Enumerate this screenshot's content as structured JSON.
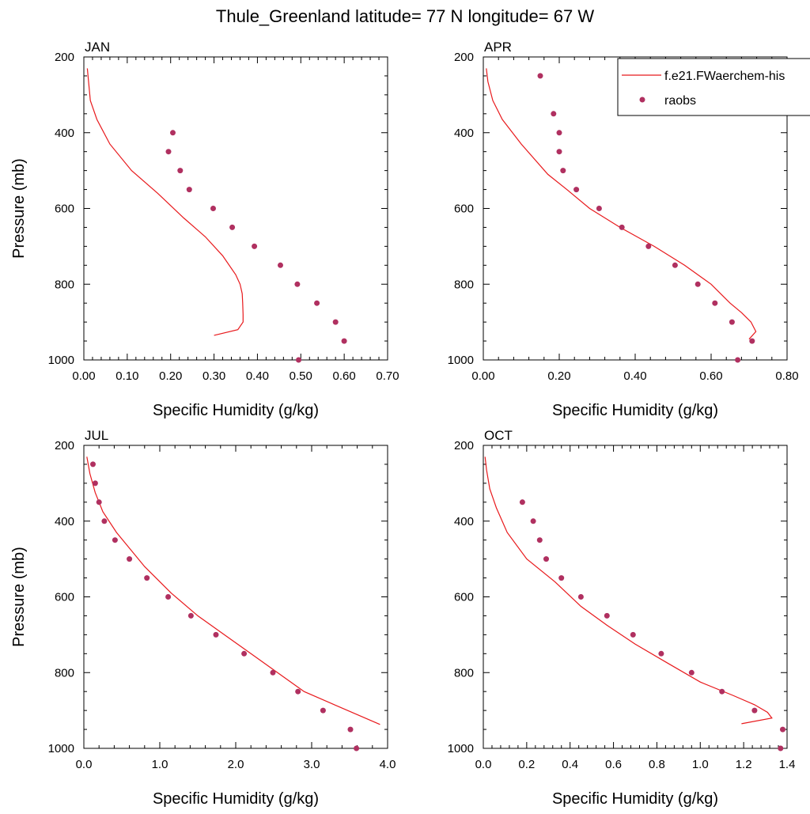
{
  "page": {
    "title": "Thule_Greenland  latitude= 77 N longitude= 67 W"
  },
  "legend": {
    "model_label": "f.e21.FWaerchem-his",
    "obs_label": "raobs",
    "model_color": "#e8191c",
    "obs_color": "#b03060"
  },
  "chart_data": [
    {
      "type": "line",
      "title": "JAN",
      "xlabel": "Specific Humidity (g/kg)",
      "ylabel": "Pressure (mb)",
      "xlim": [
        0,
        0.7
      ],
      "ylim": [
        1000,
        200
      ],
      "y_inverted": true,
      "xticks": [
        "0.00",
        "0.10",
        "0.20",
        "0.30",
        "0.40",
        "0.50",
        "0.60",
        "0.70"
      ],
      "yticks": [
        "200",
        "400",
        "600",
        "800",
        "1000"
      ],
      "series": [
        {
          "name": "f.e21.FWaerchem-his",
          "kind": "line",
          "x": [
            0.3,
            0.355,
            0.367,
            0.367,
            0.366,
            0.365,
            0.36,
            0.35,
            0.32,
            0.28,
            0.23,
            0.17,
            0.11,
            0.06,
            0.03,
            0.015,
            0.008
          ],
          "y": [
            935,
            920,
            900,
            880,
            850,
            825,
            800,
            775,
            725,
            675,
            625,
            560,
            500,
            430,
            365,
            315,
            230
          ]
        },
        {
          "name": "raobs",
          "kind": "markers",
          "x": [
            0.495,
            0.6,
            0.58,
            0.537,
            0.492,
            0.453,
            0.393,
            0.342,
            0.298,
            0.243,
            0.222,
            0.195,
            0.205
          ],
          "y": [
            1000,
            950,
            900,
            850,
            800,
            750,
            700,
            650,
            600,
            550,
            500,
            450,
            400
          ]
        }
      ]
    },
    {
      "type": "line",
      "title": "APR",
      "xlabel": "Specific Humidity (g/kg)",
      "ylabel": "",
      "xlim": [
        0,
        0.8
      ],
      "ylim": [
        1000,
        200
      ],
      "y_inverted": true,
      "xticks": [
        "0.00",
        "0.20",
        "0.40",
        "0.60",
        "0.80"
      ],
      "yticks": [
        "200",
        "400",
        "600",
        "800",
        "1000"
      ],
      "series": [
        {
          "name": "f.e21.FWaerchem-his",
          "kind": "line",
          "x": [
            0.7,
            0.718,
            0.705,
            0.68,
            0.65,
            0.6,
            0.53,
            0.45,
            0.36,
            0.28,
            0.22,
            0.17,
            0.1,
            0.05,
            0.025,
            0.012,
            0.008
          ],
          "y": [
            945,
            925,
            900,
            875,
            850,
            800,
            750,
            700,
            650,
            600,
            550,
            510,
            430,
            365,
            315,
            265,
            230
          ]
        },
        {
          "name": "raobs",
          "kind": "markers",
          "x": [
            0.67,
            0.708,
            0.655,
            0.61,
            0.565,
            0.505,
            0.435,
            0.365,
            0.305,
            0.245,
            0.21,
            0.2,
            0.2,
            0.185,
            0.15
          ],
          "y": [
            1000,
            950,
            900,
            850,
            800,
            750,
            700,
            650,
            600,
            550,
            500,
            450,
            400,
            350,
            250
          ]
        }
      ]
    },
    {
      "type": "line",
      "title": "JUL",
      "xlabel": "Specific Humidity (g/kg)",
      "ylabel": "Pressure (mb)",
      "xlim": [
        0,
        4.0
      ],
      "ylim": [
        1000,
        200
      ],
      "y_inverted": true,
      "xticks": [
        "0.0",
        "1.0",
        "2.0",
        "3.0",
        "4.0"
      ],
      "yticks": [
        "200",
        "400",
        "600",
        "800",
        "1000"
      ],
      "series": [
        {
          "name": "f.e21.FWaerchem-his",
          "kind": "line",
          "x": [
            3.9,
            3.3,
            2.9,
            2.55,
            2.2,
            1.85,
            1.5,
            1.15,
            0.8,
            0.43,
            0.25,
            0.15,
            0.08,
            0.04
          ],
          "y": [
            937,
            885,
            850,
            800,
            750,
            700,
            650,
            590,
            520,
            430,
            375,
            325,
            275,
            230
          ]
        },
        {
          "name": "raobs",
          "kind": "markers",
          "x": [
            3.59,
            3.51,
            3.15,
            2.82,
            2.49,
            2.11,
            1.74,
            1.41,
            1.11,
            0.83,
            0.6,
            0.41,
            0.27,
            0.2,
            0.15,
            0.12
          ],
          "y": [
            1000,
            950,
            900,
            850,
            800,
            750,
            700,
            650,
            600,
            550,
            500,
            450,
            400,
            350,
            300,
            250
          ]
        }
      ]
    },
    {
      "type": "line",
      "title": "OCT",
      "xlabel": "Specific Humidity (g/kg)",
      "ylabel": "",
      "xlim": [
        0,
        1.4
      ],
      "ylim": [
        1000,
        200
      ],
      "y_inverted": true,
      "xticks": [
        "0.0",
        "0.2",
        "0.4",
        "0.6",
        "0.8",
        "1.0",
        "1.2",
        "1.4"
      ],
      "yticks": [
        "200",
        "400",
        "600",
        "800",
        "1000"
      ],
      "series": [
        {
          "name": "f.e21.FWaerchem-his",
          "kind": "line",
          "x": [
            1.19,
            1.33,
            1.31,
            1.25,
            1.15,
            1.0,
            0.85,
            0.7,
            0.57,
            0.45,
            0.33,
            0.2,
            0.11,
            0.06,
            0.03,
            0.015,
            0.008
          ],
          "y": [
            935,
            920,
            905,
            885,
            860,
            825,
            775,
            725,
            675,
            625,
            560,
            500,
            430,
            365,
            315,
            265,
            230
          ]
        },
        {
          "name": "raobs",
          "kind": "markers",
          "x": [
            1.37,
            1.38,
            1.25,
            1.1,
            0.96,
            0.82,
            0.69,
            0.57,
            0.45,
            0.36,
            0.29,
            0.26,
            0.23,
            0.18
          ],
          "y": [
            1000,
            950,
            900,
            850,
            800,
            750,
            700,
            650,
            600,
            550,
            500,
            450,
            400,
            350
          ]
        }
      ]
    }
  ]
}
